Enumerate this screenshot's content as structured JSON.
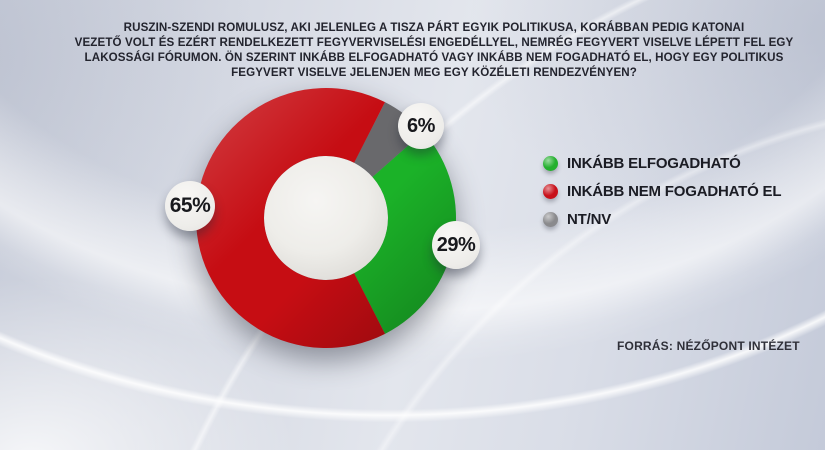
{
  "question": {
    "lines": [
      "RUSZIN-SZENDI ROMULUSZ, AKI JELENLEG A TISZA PÁRT EGYIK POLITIKUSA, KORÁBBAN PEDIG KATONAI",
      "VEZETŐ VOLT ÉS EZÉRT RENDELKEZETT FEGYVERVISELÉSI ENGEDÉLLYEL, NEMRÉG FEGYVERT VISELVE LÉPETT FEL EGY",
      "LAKOSSÁGI FÓRUMON. ÖN SZERINT INKÁBB ELFOGADHATÓ VAGY INKÁBB NEM FOGADHATÓ EL, HOGY EGY POLITIKUS",
      "FEGYVERT VISELVE JELENJEN MEG EGY KÖZÉLETI RENDEZVÉNYEN?"
    ]
  },
  "chart_data": {
    "type": "pie",
    "donut": true,
    "title": "",
    "categories": [
      "INKÁBB ELFOGADHATÓ",
      "INKÁBB NEM FOGADHATÓ EL",
      "NT/NV"
    ],
    "values": [
      29,
      65,
      6
    ],
    "labels": [
      "29%",
      "65%",
      "6%"
    ],
    "colors": [
      "#1bb228",
      "#c60d13",
      "#69696c"
    ],
    "start_angle_deg": 27,
    "draw_order": [
      2,
      0,
      1
    ],
    "donut_hole_ratio": 0.477,
    "legend_position": "right"
  },
  "legend": {
    "items": [
      {
        "label": "INKÁBB ELFOGADHATÓ",
        "color": "#24b02e",
        "icon": "green-dot-icon"
      },
      {
        "label": "INKÁBB NEM FOGADHATÓ EL",
        "color": "#c8101a",
        "icon": "red-dot-icon"
      },
      {
        "label": "NT/NV",
        "color": "#8a8a8d",
        "icon": "gray-dot-icon"
      }
    ]
  },
  "source": {
    "text": "FORRÁS: NÉZŐPONT INTÉZET"
  }
}
